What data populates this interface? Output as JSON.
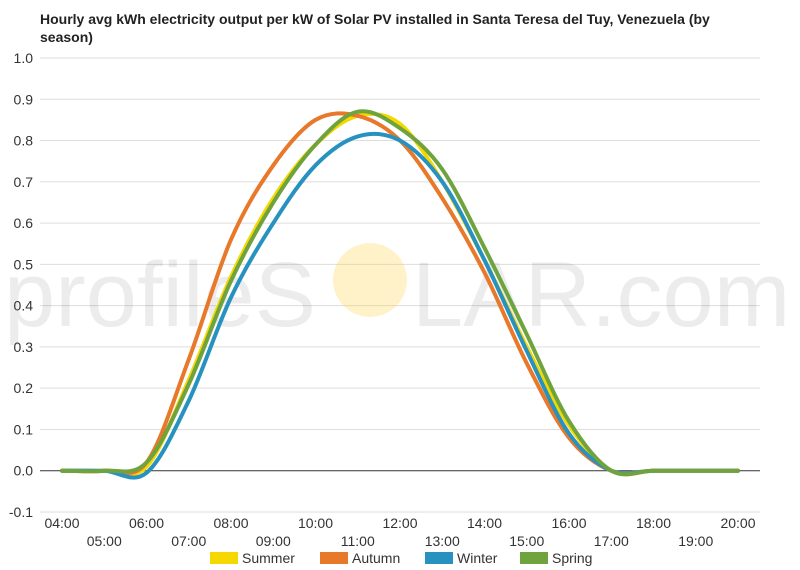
{
  "chart_data": {
    "type": "line",
    "title": "Hourly avg kWh electricity output per kW of Solar PV installed in Santa Teresa del Tuy, Venezuela (by season)",
    "xlabel": "",
    "ylabel": "",
    "x": [
      "04:00",
      "05:00",
      "06:00",
      "07:00",
      "08:00",
      "09:00",
      "10:00",
      "11:00",
      "12:00",
      "13:00",
      "14:00",
      "15:00",
      "16:00",
      "17:00",
      "18:00",
      "19:00",
      "20:00"
    ],
    "ylim": [
      -0.1,
      1.0
    ],
    "yticks": [
      "-0.1",
      "0.0",
      "0.1",
      "0.2",
      "0.3",
      "0.4",
      "0.5",
      "0.6",
      "0.7",
      "0.8",
      "0.9",
      "1.0"
    ],
    "grid": true,
    "legend_position": "bottom",
    "series": [
      {
        "name": "Summer",
        "color": "#f5d800",
        "values": [
          0.0,
          0.0,
          0.01,
          0.22,
          0.47,
          0.66,
          0.79,
          0.86,
          0.84,
          0.7,
          0.51,
          0.3,
          0.11,
          0.0,
          0.0,
          0.0,
          0.0
        ]
      },
      {
        "name": "Autumn",
        "color": "#e8782a",
        "values": [
          0.0,
          0.0,
          0.02,
          0.27,
          0.56,
          0.74,
          0.85,
          0.86,
          0.8,
          0.66,
          0.48,
          0.26,
          0.08,
          0.0,
          0.0,
          0.0,
          0.0
        ]
      },
      {
        "name": "Winter",
        "color": "#2792c0",
        "values": [
          0.0,
          0.0,
          -0.005,
          0.17,
          0.42,
          0.6,
          0.74,
          0.81,
          0.8,
          0.7,
          0.51,
          0.29,
          0.09,
          0.0,
          0.0,
          0.0,
          0.0
        ]
      },
      {
        "name": "Spring",
        "color": "#6fa33e",
        "values": [
          0.0,
          0.0,
          0.02,
          0.21,
          0.46,
          0.65,
          0.79,
          0.87,
          0.83,
          0.73,
          0.54,
          0.33,
          0.12,
          0.0,
          0.0,
          0.0,
          0.0
        ]
      }
    ]
  },
  "watermark": {
    "left": "profileS",
    "right": "LAR.com",
    "sun_color": "#ffd23a"
  }
}
